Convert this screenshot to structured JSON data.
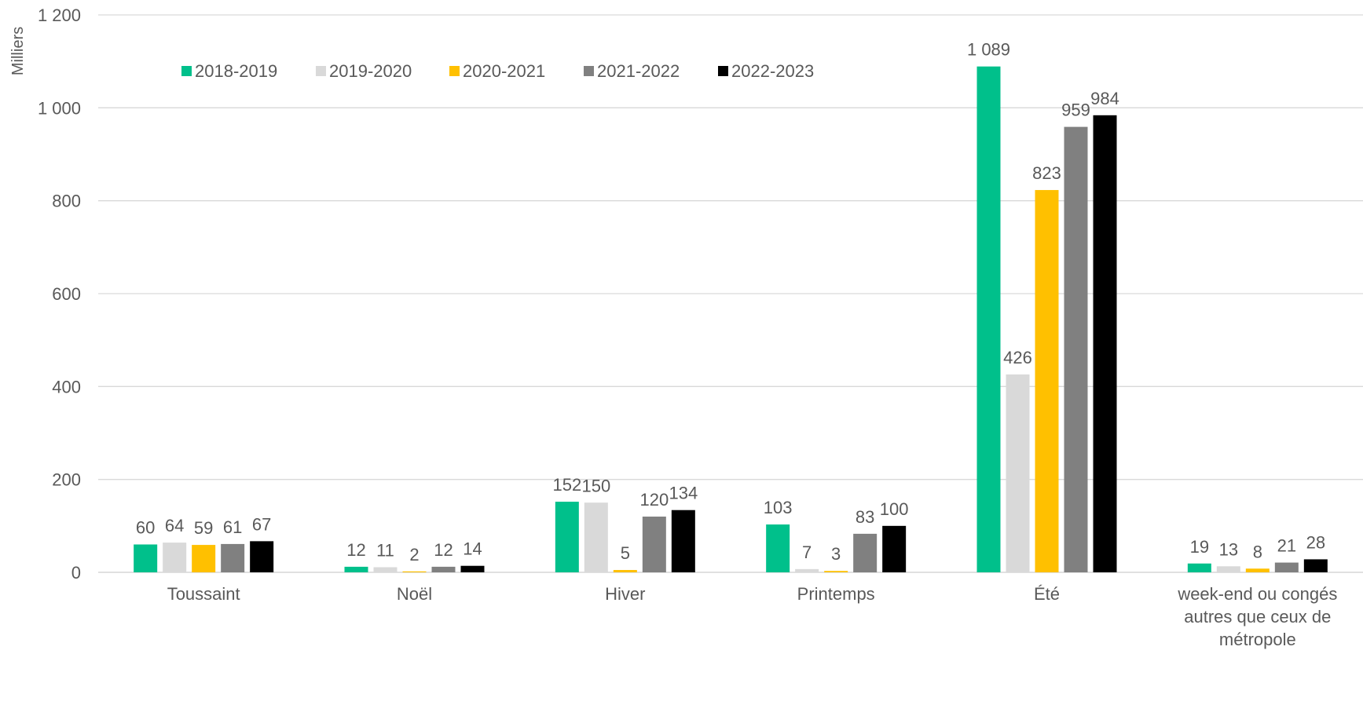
{
  "chart_data": {
    "type": "bar",
    "ylabel": "Milliers",
    "ylim": [
      0,
      1200
    ],
    "yticks": [
      0,
      200,
      400,
      600,
      800,
      1000,
      1200
    ],
    "ytick_labels": [
      "0",
      "200",
      "400",
      "600",
      "800",
      "1 000",
      "1 200"
    ],
    "grid": true,
    "legend_position": "top-left",
    "categories": [
      [
        "Toussaint"
      ],
      [
        "Noël"
      ],
      [
        "Hiver"
      ],
      [
        "Printemps"
      ],
      [
        "Été"
      ],
      [
        "week-end ou congés",
        "autres que ceux de",
        "métropole"
      ]
    ],
    "series": [
      {
        "name": "2018-2019",
        "color": "#00C08B",
        "values": [
          60,
          12,
          152,
          103,
          1089,
          19
        ],
        "labels": [
          "60",
          "12",
          "152",
          "103",
          "1 089",
          "19"
        ]
      },
      {
        "name": "2019-2020",
        "color": "#D9D9D9",
        "values": [
          64,
          11,
          150,
          7,
          426,
          13
        ],
        "labels": [
          "64",
          "11",
          "150",
          "7",
          "426",
          "13"
        ]
      },
      {
        "name": "2020-2021",
        "color": "#FFC000",
        "values": [
          59,
          2,
          5,
          3,
          823,
          8
        ],
        "labels": [
          "59",
          "2",
          "5",
          "3",
          "823",
          "8"
        ]
      },
      {
        "name": "2021-2022",
        "color": "#808080",
        "values": [
          61,
          12,
          120,
          83,
          959,
          21
        ],
        "labels": [
          "61",
          "12",
          "120",
          "83",
          "959",
          "21"
        ]
      },
      {
        "name": "2022-2023",
        "color": "#000000",
        "values": [
          67,
          14,
          134,
          100,
          984,
          28
        ],
        "labels": [
          "67",
          "14",
          "134",
          "100",
          "984",
          "28"
        ]
      }
    ]
  }
}
